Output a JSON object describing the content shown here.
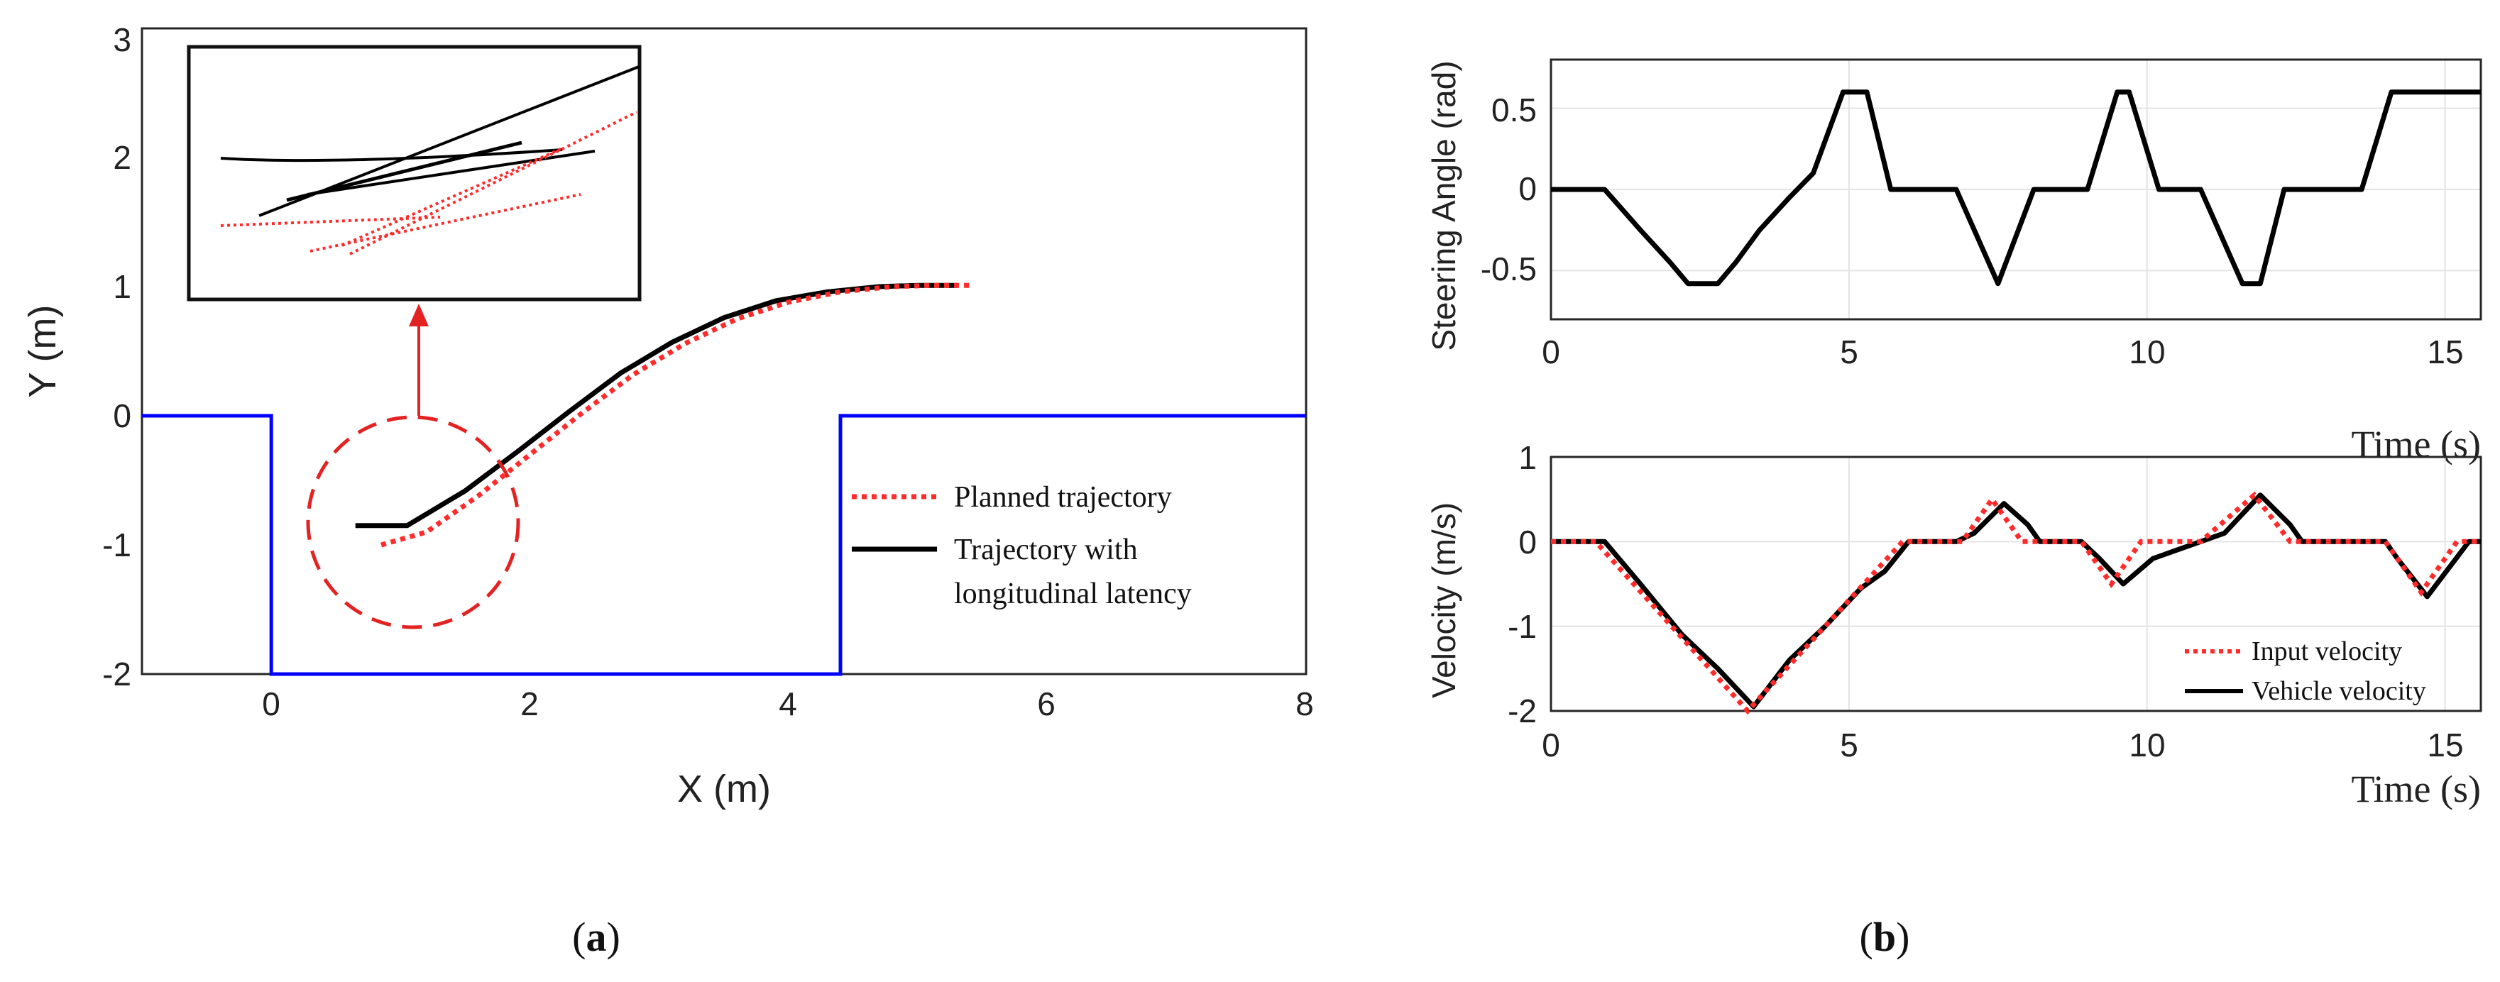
{
  "chart_data": [
    {
      "id": "a",
      "type": "line",
      "caption": {
        "open": "(",
        "letter": "a",
        "close": ")"
      },
      "xlabel": "X (m)",
      "ylabel": "Y (m)",
      "xlim": [
        -1,
        8
      ],
      "ylim": [
        -2,
        3
      ],
      "xticks": [
        "0",
        "2",
        "4",
        "6",
        "8"
      ],
      "yticks": [
        "-2",
        "-1",
        "0",
        "1",
        "2",
        "3"
      ],
      "legend": {
        "placement": "center-right",
        "entries": [
          "Planned trajectory",
          "Trajectory with",
          "longitudinal latency"
        ]
      },
      "series": [
        {
          "name": "Parking boundary",
          "color": "#0000ff",
          "style": "solid",
          "x": [
            -1,
            0,
            0,
            4.4,
            4.4,
            8
          ],
          "y": [
            0,
            0,
            -2,
            -2,
            0,
            0
          ]
        },
        {
          "name": "Planned trajectory",
          "color": "#ff2b2b",
          "style": "dotted",
          "x": [
            0.85,
            1.2,
            1.6,
            2.0,
            2.4,
            2.8,
            3.2,
            3.6,
            4.0,
            4.4,
            4.8,
            5.1,
            5.4
          ],
          "y": [
            -1.0,
            -0.9,
            -0.62,
            -0.3,
            0.02,
            0.32,
            0.56,
            0.75,
            0.88,
            0.96,
            1.0,
            1.01,
            1.01
          ]
        },
        {
          "name": "Trajectory with longitudinal latency",
          "color": "#000000",
          "style": "solid",
          "x": [
            0.65,
            1.05,
            1.5,
            1.9,
            2.3,
            2.7,
            3.1,
            3.5,
            3.9,
            4.3,
            4.7,
            5.0,
            5.3
          ],
          "y": [
            -0.85,
            -0.85,
            -0.58,
            -0.28,
            0.03,
            0.33,
            0.57,
            0.76,
            0.89,
            0.96,
            1.0,
            1.01,
            1.01
          ]
        }
      ],
      "annotations": [
        "dashed red circle around start region near (1.1, -1.0)",
        "arrow to zoom inset",
        "inset zoom of start region"
      ]
    },
    {
      "id": "b-top",
      "type": "line",
      "xlabel": "Time (s)",
      "ylabel": "Steering Angle (rad)",
      "xlim": [
        0,
        15.6
      ],
      "ylim": [
        -0.8,
        0.8
      ],
      "xticks": [
        "0",
        "5",
        "10",
        "15"
      ],
      "yticks": [
        "0.5",
        "0",
        "-0.5"
      ],
      "grid": true,
      "series": [
        {
          "name": "Steering angle",
          "color": "#000000",
          "x": [
            0,
            0.9,
            1.5,
            2.0,
            2.3,
            2.8,
            3.1,
            3.5,
            4.0,
            4.4,
            4.9,
            5.3,
            5.7,
            6.0,
            6.8,
            7.5,
            8.1,
            9.0,
            9.5,
            9.7,
            10.2,
            10.9,
            11.6,
            11.9,
            12.3,
            12.9,
            13.6,
            14.1,
            15.6
          ],
          "y": [
            0,
            0,
            -0.25,
            -0.45,
            -0.58,
            -0.58,
            -0.45,
            -0.25,
            -0.05,
            0.1,
            0.6,
            0.6,
            0.0,
            0.0,
            0.0,
            -0.58,
            0.0,
            0.0,
            0.6,
            0.6,
            0.0,
            0.0,
            -0.58,
            -0.58,
            0.0,
            0.0,
            0.0,
            0.6,
            0.6
          ]
        }
      ]
    },
    {
      "id": "b-bottom",
      "type": "line",
      "caption": {
        "open": "(",
        "letter": "b",
        "close": ")"
      },
      "xlabel": "Time (s)",
      "ylabel": "Velocity (m/s)",
      "xlim": [
        0,
        15.6
      ],
      "ylim": [
        -2,
        1
      ],
      "xticks": [
        "0",
        "5",
        "10",
        "15"
      ],
      "yticks": [
        "1",
        "0",
        "-1",
        "-2"
      ],
      "grid": true,
      "legend": {
        "placement": "bottom-right",
        "entries": [
          "Input velocity",
          "Vehicle velocity"
        ]
      },
      "series": [
        {
          "name": "Input velocity",
          "color": "#ff2b2b",
          "style": "dotted",
          "x": [
            0,
            0.75,
            3.3,
            5.9,
            6.9,
            7.4,
            7.9,
            8.9,
            9.4,
            9.9,
            10.9,
            11.8,
            12.4,
            14.0,
            14.6,
            15.2,
            15.6
          ],
          "y": [
            0,
            0,
            -2.0,
            0,
            0,
            0.5,
            0,
            0,
            -0.5,
            0,
            0,
            0.55,
            0,
            0,
            -0.6,
            0,
            0
          ]
        },
        {
          "name": "Vehicle velocity",
          "color": "#000000",
          "style": "solid",
          "x": [
            0,
            0.9,
            1.5,
            2.2,
            2.8,
            3.4,
            4.0,
            4.6,
            5.2,
            5.6,
            6.0,
            6.8,
            7.1,
            7.6,
            8.0,
            8.2,
            8.9,
            9.2,
            9.6,
            10.1,
            10.9,
            11.3,
            11.9,
            12.4,
            12.6,
            14.0,
            14.2,
            14.7,
            15.4,
            15.6
          ],
          "y": [
            0,
            0,
            -0.5,
            -1.1,
            -1.5,
            -1.95,
            -1.4,
            -1.0,
            -0.55,
            -0.35,
            0,
            0,
            0.1,
            0.45,
            0.2,
            0,
            0,
            -0.2,
            -0.5,
            -0.2,
            0,
            0.1,
            0.55,
            0.2,
            0,
            0,
            -0.2,
            -0.65,
            0,
            0
          ]
        }
      ]
    }
  ]
}
